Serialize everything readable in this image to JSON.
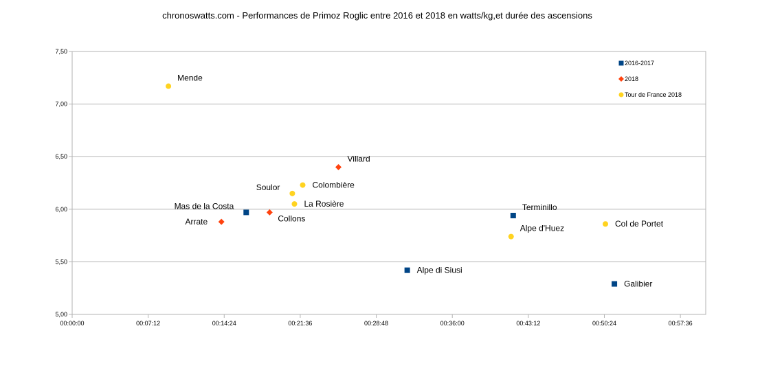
{
  "chart_data": {
    "type": "scatter",
    "title": "chronoswatts.com - Performances de Primoz Roglic entre 2016 et 2018 en watts/kg,et durée des ascensions",
    "xlabel": "",
    "ylabel": "",
    "x_unit": "seconds (hh:mm:ss)",
    "xlim": [
      0,
      3600
    ],
    "ylim": [
      5.0,
      7.5
    ],
    "x_ticks": [
      0,
      432,
      864,
      1296,
      1728,
      2160,
      2592,
      3024,
      3456
    ],
    "x_tick_labels": [
      "00:00:00",
      "00:07:12",
      "00:14:24",
      "00:21:36",
      "00:28:48",
      "00:36:00",
      "00:43:12",
      "00:50:24",
      "00:57:36"
    ],
    "y_ticks": [
      5.0,
      5.5,
      6.0,
      6.5,
      7.0,
      7.5
    ],
    "y_tick_labels": [
      "5,00",
      "5,50",
      "6,00",
      "6,50",
      "7,00",
      "7,50"
    ],
    "grid": "horizontal",
    "legend_position": "top-right",
    "series": [
      {
        "name": "2016-2017",
        "marker": "square",
        "color": "#004586",
        "points": [
          {
            "label": "Mas de la Costa",
            "x": 989,
            "y": 5.97,
            "label_pos": "left-up"
          },
          {
            "label": "Alpe di Siusi",
            "x": 1904,
            "y": 5.42,
            "label_pos": "right"
          },
          {
            "label": "Terminillo",
            "x": 2506,
            "y": 5.94,
            "label_pos": "right-up"
          },
          {
            "label": "Galibier",
            "x": 3081,
            "y": 5.29,
            "label_pos": "right"
          }
        ]
      },
      {
        "name": "2018",
        "marker": "diamond",
        "color": "#ff420e",
        "points": [
          {
            "label": "Arrate",
            "x": 848,
            "y": 5.88,
            "label_pos": "left"
          },
          {
            "label": "Collons",
            "x": 1122,
            "y": 5.97,
            "label_pos": "right-down"
          },
          {
            "label": "Villard",
            "x": 1513,
            "y": 6.4,
            "label_pos": "right-up"
          }
        ]
      },
      {
        "name": "Tour de France 2018",
        "marker": "circle",
        "color": "#ffd320",
        "points": [
          {
            "label": "Mende",
            "x": 547,
            "y": 7.17,
            "label_pos": "right-up"
          },
          {
            "label": "Soulor",
            "x": 1251,
            "y": 6.15,
            "label_pos": "left-up"
          },
          {
            "label": "Colombière",
            "x": 1310,
            "y": 6.23,
            "label_pos": "right"
          },
          {
            "label": "La Rosière",
            "x": 1263,
            "y": 6.05,
            "label_pos": "right"
          },
          {
            "label": "Alpe d'Huez",
            "x": 2494,
            "y": 5.74,
            "label_pos": "right-up"
          },
          {
            "label": "Col de Portet",
            "x": 3030,
            "y": 5.86,
            "label_pos": "right"
          }
        ]
      }
    ]
  }
}
